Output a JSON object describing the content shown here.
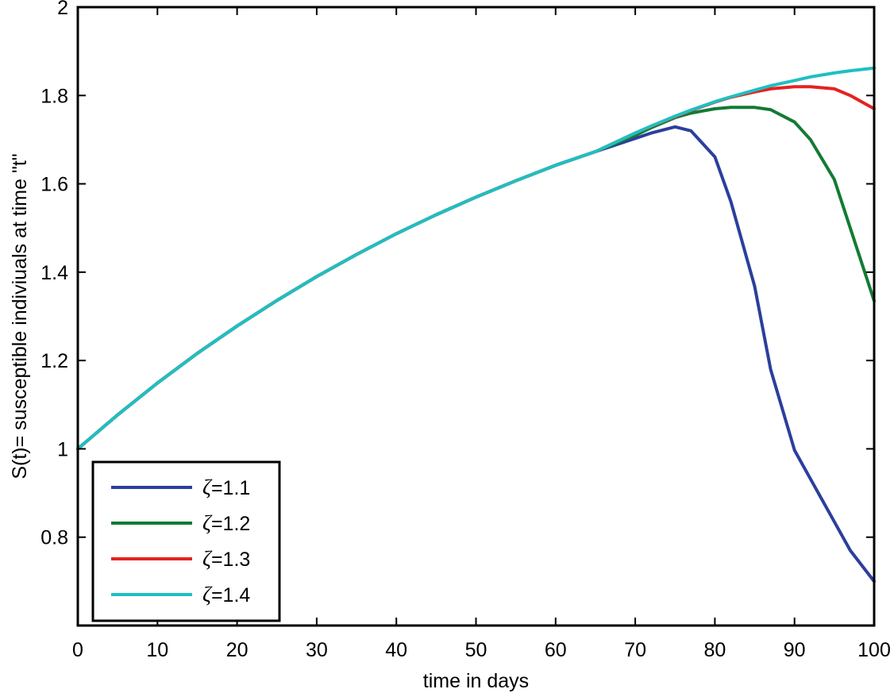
{
  "chart_data": {
    "type": "line",
    "title": "",
    "xlabel": "time in days",
    "ylabel": "S(t)= susceptible indiviuals at time \"t\"",
    "xlim": [
      0,
      100
    ],
    "ylim": [
      0.6,
      2.0
    ],
    "xticks": [
      0,
      10,
      20,
      30,
      40,
      50,
      60,
      70,
      80,
      90,
      100
    ],
    "yticks": [
      0.8,
      1,
      1.2,
      1.4,
      1.6,
      1.8,
      2
    ],
    "xtick_labels": [
      "0",
      "10",
      "20",
      "30",
      "40",
      "50",
      "60",
      "70",
      "80",
      "90",
      "100"
    ],
    "ytick_labels": [
      "0.8",
      "1",
      "1.2",
      "1.4",
      "1.6",
      "1.8",
      "2"
    ],
    "grid": false,
    "legend_position": "bottom-left",
    "x": [
      0,
      5,
      10,
      15,
      20,
      25,
      30,
      35,
      40,
      45,
      50,
      55,
      60,
      65,
      70,
      72,
      75,
      77,
      80,
      82,
      85,
      87,
      90,
      92,
      95,
      97,
      100
    ],
    "series": [
      {
        "name": "ζ=1.1",
        "color": "#2b3f9c",
        "values": [
          1.0,
          1.077,
          1.149,
          1.216,
          1.278,
          1.336,
          1.39,
          1.44,
          1.487,
          1.53,
          1.57,
          1.607,
          1.642,
          1.673,
          1.703,
          1.715,
          1.729,
          1.72,
          1.661,
          1.56,
          1.368,
          1.18,
          0.997,
          0.932,
          0.835,
          0.77,
          0.7
        ]
      },
      {
        "name": "ζ=1.2",
        "color": "#137a35",
        "values": [
          1.0,
          1.077,
          1.149,
          1.216,
          1.278,
          1.336,
          1.39,
          1.44,
          1.487,
          1.53,
          1.57,
          1.607,
          1.642,
          1.673,
          1.71,
          1.727,
          1.75,
          1.76,
          1.77,
          1.773,
          1.773,
          1.768,
          1.74,
          1.7,
          1.61,
          1.5,
          1.335
        ]
      },
      {
        "name": "ζ=1.3",
        "color": "#e42222",
        "values": [
          1.0,
          1.077,
          1.149,
          1.216,
          1.278,
          1.336,
          1.39,
          1.44,
          1.487,
          1.53,
          1.57,
          1.607,
          1.642,
          1.673,
          1.715,
          1.73,
          1.752,
          1.766,
          1.785,
          1.796,
          1.808,
          1.815,
          1.82,
          1.82,
          1.815,
          1.8,
          1.77
        ]
      },
      {
        "name": "ζ=1.4",
        "color": "#1fbfc2",
        "values": [
          1.0,
          1.077,
          1.149,
          1.216,
          1.278,
          1.336,
          1.39,
          1.44,
          1.487,
          1.53,
          1.57,
          1.607,
          1.642,
          1.673,
          1.715,
          1.731,
          1.753,
          1.767,
          1.786,
          1.797,
          1.812,
          1.822,
          1.834,
          1.842,
          1.851,
          1.856,
          1.862
        ]
      }
    ]
  }
}
